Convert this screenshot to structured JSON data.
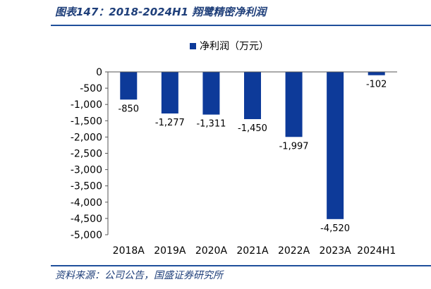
{
  "header": {
    "title": "图表147：2018-2024H1 翔鹭精密净利润"
  },
  "footer": {
    "source": "资料来源：公司公告，国盛证券研究所"
  },
  "colors": {
    "bar": "#0d3a99",
    "rule": "#1f4f9b"
  },
  "chart_data": {
    "type": "bar",
    "title": "",
    "xlabel": "",
    "ylabel": "",
    "categories": [
      "2018A",
      "2019A",
      "2020A",
      "2021A",
      "2022A",
      "2023A",
      "2024H1"
    ],
    "series": [
      {
        "name": "净利润（万元）",
        "values": [
          -850,
          -1277,
          -1311,
          -1450,
          -1997,
          -4520,
          -102
        ],
        "labels": [
          "-850",
          "-1,277",
          "-1,311",
          "-1,450",
          "-1,997",
          "-4,520",
          "-102"
        ]
      }
    ],
    "ylim": [
      -5000,
      0
    ],
    "yticks": [
      0,
      -500,
      -1000,
      -1500,
      -2000,
      -2500,
      -3000,
      -3500,
      -4000,
      -4500,
      -5000
    ],
    "ytick_labels": [
      "0",
      "-500",
      "-1,000",
      "-1,500",
      "-2,000",
      "-2,500",
      "-3,000",
      "-3,500",
      "-4,000",
      "-4,500",
      "-5,000"
    ],
    "grid": false,
    "legend": "top-center"
  }
}
